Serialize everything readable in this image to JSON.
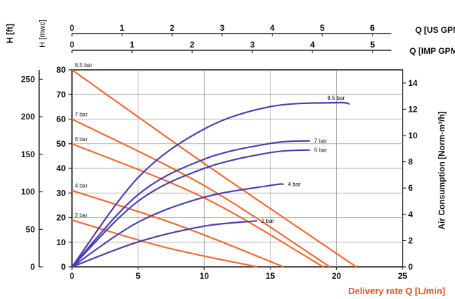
{
  "chart_data": {
    "type": "line",
    "xlabel": "Delivery rate Q [L/min]",
    "x_ticks": [
      "0",
      "5",
      "10",
      "15",
      "20",
      "25"
    ],
    "xlim": [
      0,
      25
    ],
    "ylabel_left_ft": "H [ft]",
    "ylabel_left_mwc": "H [mwc]",
    "ylabel_right": "Air Consumption [Norm-m³/h]",
    "y_mwc_ticks": [
      "0",
      "10",
      "20",
      "30",
      "40",
      "50",
      "60",
      "70",
      "80"
    ],
    "y_mwc_lim": [
      0,
      80
    ],
    "y_ft_ticks": [
      "0",
      "50",
      "100",
      "150",
      "200",
      "250"
    ],
    "y_right_ticks": [
      "0",
      "2",
      "4",
      "6",
      "8",
      "10",
      "12",
      "14"
    ],
    "y_right_lim": [
      0,
      15
    ],
    "top_axis_us": {
      "label": "Q [US GPM]",
      "ticks": [
        "0",
        "1",
        "2",
        "3",
        "4",
        "5",
        "6"
      ]
    },
    "top_axis_imp": {
      "label": "Q [IMP GPM]",
      "ticks": [
        "0",
        "1",
        "2",
        "3",
        "4",
        "5"
      ]
    },
    "grid": true,
    "colors": {
      "head": "#f26a2e",
      "air": "#4a3fb0",
      "xlabel": "#e8531f",
      "right_label": "#3b36c9"
    },
    "head_series": [
      {
        "name": "8.5 bar",
        "points": [
          [
            0,
            80
          ],
          [
            10,
            42
          ],
          [
            21.5,
            0
          ]
        ]
      },
      {
        "name": "7 bar",
        "points": [
          [
            0,
            60
          ],
          [
            10,
            33
          ],
          [
            19.5,
            0
          ]
        ]
      },
      {
        "name": "6 bar",
        "points": [
          [
            0,
            50
          ],
          [
            10,
            28
          ],
          [
            19,
            0
          ]
        ]
      },
      {
        "name": "4 bar",
        "points": [
          [
            0,
            31
          ],
          [
            8,
            17
          ],
          [
            16,
            0
          ]
        ]
      },
      {
        "name": "2 bar",
        "points": [
          [
            0,
            19
          ],
          [
            7,
            8
          ],
          [
            14,
            0
          ]
        ]
      }
    ],
    "air_series": [
      {
        "name": "8.5 bar",
        "points": [
          [
            0,
            0
          ],
          [
            5,
            6.8
          ],
          [
            10,
            10.5
          ],
          [
            15,
            12.2
          ],
          [
            20,
            12.5
          ],
          [
            21,
            12.4
          ]
        ]
      },
      {
        "name": "7 bar",
        "points": [
          [
            0,
            0
          ],
          [
            5,
            5.5
          ],
          [
            10,
            8.2
          ],
          [
            15,
            9.4
          ],
          [
            18,
            9.6
          ]
        ]
      },
      {
        "name": "6 bar",
        "points": [
          [
            0,
            0
          ],
          [
            5,
            5
          ],
          [
            10,
            7.5
          ],
          [
            15,
            8.7
          ],
          [
            18,
            8.9
          ]
        ]
      },
      {
        "name": "4 bar",
        "points": [
          [
            0,
            0
          ],
          [
            5,
            3.4
          ],
          [
            10,
            5.3
          ],
          [
            15,
            6.2
          ],
          [
            16,
            6.3
          ]
        ]
      },
      {
        "name": "2 bar",
        "points": [
          [
            0,
            0
          ],
          [
            5,
            1.9
          ],
          [
            10,
            3.1
          ],
          [
            14,
            3.5
          ]
        ]
      }
    ]
  }
}
